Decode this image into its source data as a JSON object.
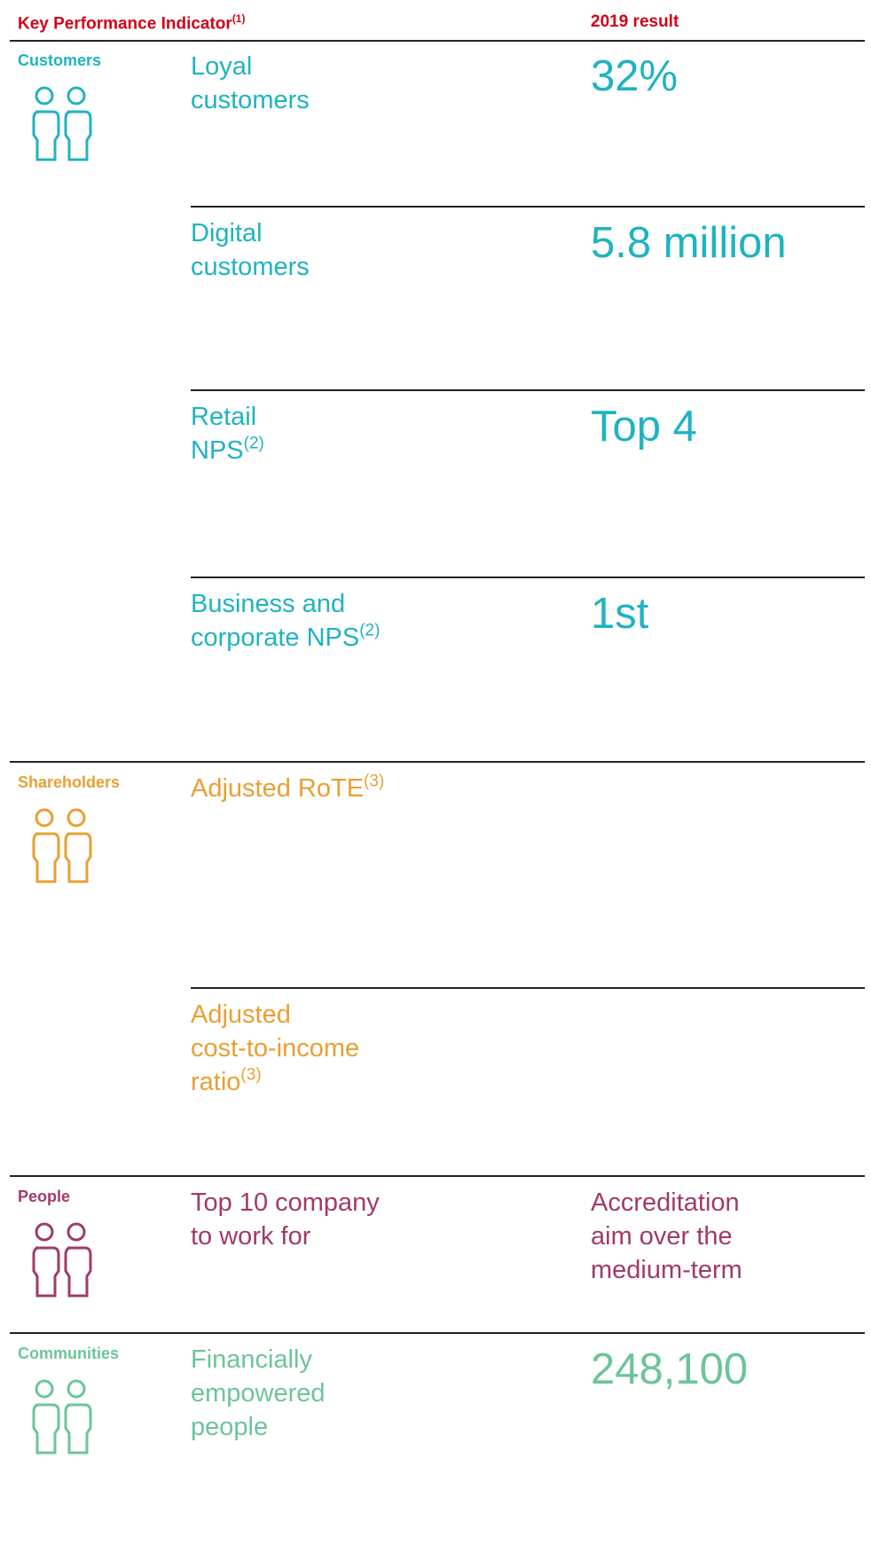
{
  "header": {
    "kpi": "Key Performance Indicator",
    "kpi_note": "(1)",
    "result": "2019 result"
  },
  "sections": [
    {
      "name": "Customers",
      "color": "#1fb3c1",
      "rows": [
        {
          "lines": [
            "Loyal",
            "customers"
          ],
          "result": [
            "32%"
          ]
        },
        {
          "lines": [
            "Digital",
            "customers"
          ],
          "result": [
            "5.8 million"
          ]
        },
        {
          "lines": [
            "Retail",
            "NPS"
          ],
          "note": "(2)",
          "result": [
            "Top 4"
          ]
        },
        {
          "lines": [
            "Business and",
            "corporate NPS"
          ],
          "note": "(2)",
          "result": [
            "1st"
          ]
        }
      ]
    },
    {
      "name": "Shareholders",
      "color": "#e8a033",
      "rows": [
        {
          "lines": [
            "Adjusted RoTE"
          ],
          "note": "(3)"
        },
        {
          "lines": [
            "Adjusted",
            "cost-to-income",
            "ratio"
          ],
          "note": "(3)"
        }
      ]
    },
    {
      "name": "People",
      "color": "#a03a6b",
      "rows": [
        {
          "lines": [
            "Top 10 company",
            "to work for"
          ],
          "result": [
            "Accreditation",
            "aim over the",
            "medium-term"
          ],
          "small": true
        }
      ]
    },
    {
      "name": "Communities",
      "color": "#6cc49a",
      "rows": [
        {
          "lines": [
            "Financially",
            "empowered",
            "people"
          ],
          "result": [
            "248,100"
          ]
        }
      ]
    }
  ]
}
